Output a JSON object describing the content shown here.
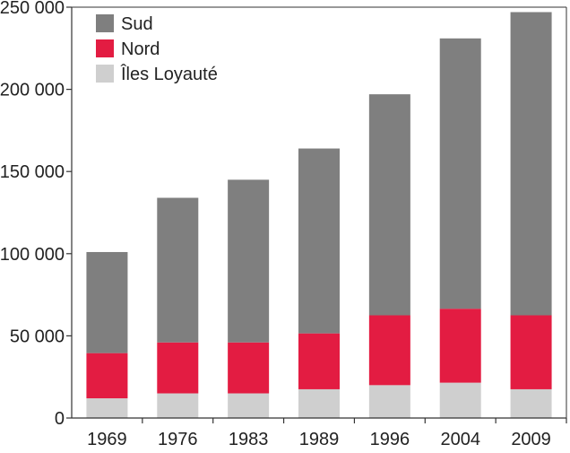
{
  "chart_data": {
    "type": "bar",
    "stacked": true,
    "categories": [
      "1969",
      "1976",
      "1983",
      "1989",
      "1996",
      "2004",
      "2009"
    ],
    "series": [
      {
        "name": "Îles Loyauté",
        "color": "#cfcfcf",
        "values": [
          12000,
          15000,
          15000,
          17500,
          20000,
          21500,
          17500
        ]
      },
      {
        "name": "Nord",
        "color": "#e31c42",
        "values": [
          27500,
          31000,
          31000,
          34000,
          42500,
          45000,
          45000
        ]
      },
      {
        "name": "Sud",
        "color": "#7f7f7f",
        "values": [
          61500,
          88000,
          99000,
          112500,
          134500,
          164500,
          184500
        ]
      }
    ],
    "y_ticks": [
      0,
      50000,
      100000,
      150000,
      200000,
      250000
    ],
    "y_tick_labels": [
      "0",
      "50 000",
      "100 000",
      "150 000",
      "200 000",
      "250 000"
    ],
    "ylim": [
      0,
      250000
    ],
    "legend_order": [
      "Sud",
      "Nord",
      "Îles Loyauté"
    ],
    "legend_position": "top-left",
    "grid": false,
    "title": "",
    "xlabel": "",
    "ylabel": ""
  }
}
